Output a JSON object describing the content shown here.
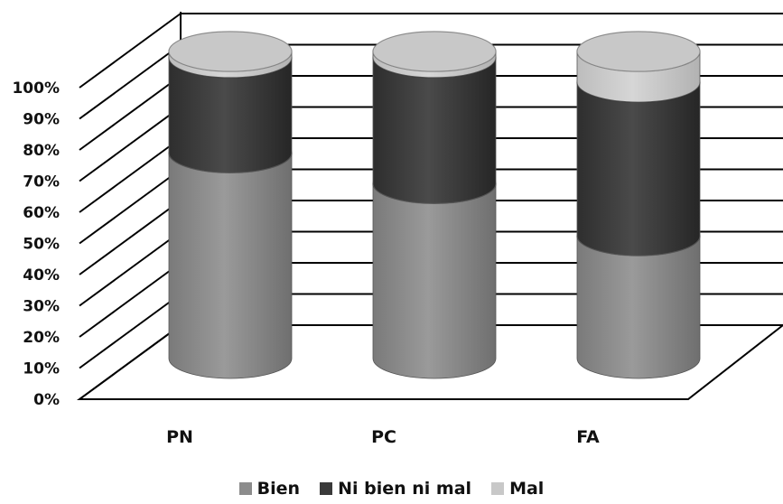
{
  "chart_data": {
    "type": "bar",
    "stacked": true,
    "percent": true,
    "three_d": true,
    "categories": [
      "PN",
      "PC",
      "FA"
    ],
    "series": [
      {
        "name": "Bien",
        "values": [
          67,
          57,
          40
        ],
        "color": "#8c8c8c"
      },
      {
        "name": "Ni bien ni mal",
        "values": [
          31,
          41,
          50
        ],
        "color": "#3a3a3a"
      },
      {
        "name": "Mal",
        "values": [
          2,
          2,
          10
        ],
        "color": "#c8c8c8"
      }
    ],
    "y_ticks": [
      "0%",
      "10%",
      "20%",
      "30%",
      "40%",
      "50%",
      "60%",
      "70%",
      "80%",
      "90%",
      "100%"
    ],
    "ylim": [
      0,
      100
    ],
    "grid": true,
    "legend_position": "bottom"
  }
}
